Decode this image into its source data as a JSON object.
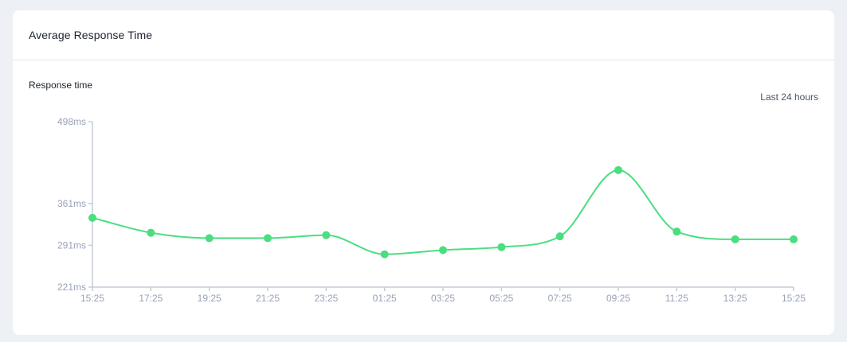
{
  "card": {
    "title": "Average Response Time",
    "subtitle": "Response time",
    "range_label": "Last 24 hours"
  },
  "colors": {
    "line": "#4ade80",
    "axis": "#c5ccd6",
    "tick_text": "#98a2b8",
    "background": "#edf0f5"
  },
  "chart_data": {
    "type": "line",
    "title": "Average Response Time",
    "subtitle": "Response time",
    "annotation": "Last 24 hours",
    "xlabel": "",
    "ylabel": "",
    "categories": [
      "15:25",
      "17:25",
      "19:25",
      "21:25",
      "23:25",
      "01:25",
      "03:25",
      "05:25",
      "07:25",
      "09:25",
      "11:25",
      "13:25",
      "15:25"
    ],
    "series": [
      {
        "name": "Response time",
        "unit": "ms",
        "values": [
          337,
          312,
          303,
          303,
          308,
          276,
          283,
          288,
          306,
          417,
          314,
          301,
          301
        ]
      }
    ],
    "y_ticks": [
      "221ms",
      "291ms",
      "361ms",
      "498ms"
    ],
    "y_tick_values": [
      221,
      291,
      361,
      498
    ],
    "ylim": [
      221,
      498
    ],
    "grid": false,
    "legend": "none",
    "smooth": true,
    "markers": true
  }
}
